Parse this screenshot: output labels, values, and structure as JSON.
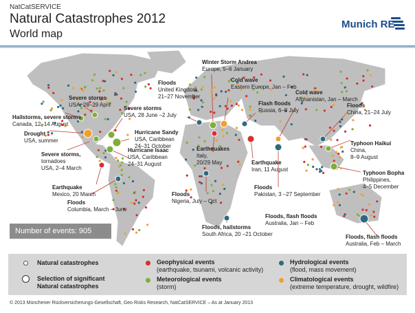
{
  "header": {
    "brand_small": "NatCatSERVICE",
    "title": "Natural Catastrophes 2012",
    "subtitle": "World map",
    "logo_text": "Munich RE"
  },
  "colors": {
    "land": "#bfbfbf",
    "ocean": "#ffffff",
    "geophysical": "#d62f2f",
    "meteorological": "#7fae3a",
    "hydrological": "#2d6a7f",
    "climatological": "#f0a030",
    "logo_blue": "#1a4d8c",
    "leader": "#c0392b"
  },
  "events_count": "Number of events: 905",
  "annotations": [
    {
      "key": "severe_storms_usa_apr",
      "title": "Severe storms",
      "lines": [
        "USA, 28–29 April"
      ]
    },
    {
      "key": "hailstorms_canada",
      "title": "Hailstorms, severe storms",
      "lines": [
        "Canada, 12–14 August"
      ]
    },
    {
      "key": "drought_usa",
      "title": "Drought",
      "lines": [
        "USA, summer"
      ]
    },
    {
      "key": "severe_storms_tornadoes",
      "title": "Severe storms,",
      "lines": [
        "tornadoes",
        "USA, 2–4 March"
      ]
    },
    {
      "key": "earthquake_mexico",
      "title": "Earthquake",
      "lines": [
        "Mexico, 20 March"
      ]
    },
    {
      "key": "floods_columbia",
      "title": "Floods",
      "lines": [
        "Columbia, March – June"
      ]
    },
    {
      "key": "severe_storms_usa_jul",
      "title": "Severe storms",
      "lines": [
        "USA, 28 June –2 July"
      ]
    },
    {
      "key": "hurricane_sandy",
      "title": "Hurricane Sandy",
      "lines": [
        "USA, Caribbean",
        "24–31 October"
      ]
    },
    {
      "key": "hurricane_isaac",
      "title": "Hurricane Isaac",
      "lines": [
        "USA, Caribbean",
        "24–31 August"
      ]
    },
    {
      "key": "floods_uk",
      "title": "Floods",
      "lines": [
        "United Kingdom,",
        "21–27 November"
      ]
    },
    {
      "key": "winter_storm_andrea",
      "title": "Winter Storm Andrea",
      "lines": [
        "Europe, 5–6 January"
      ]
    },
    {
      "key": "cold_wave_europe",
      "title": "Cold wave",
      "lines": [
        "Eastern Europe, Jan – Feb"
      ]
    },
    {
      "key": "flash_floods_russia",
      "title": "Flash floods",
      "lines": [
        "Russia, 6–8 July"
      ]
    },
    {
      "key": "cold_wave_afghanistan",
      "title": "Cold wave",
      "lines": [
        "Afghanistan, Jan – March"
      ]
    },
    {
      "key": "floods_china",
      "title": "Floods",
      "lines": [
        "China, 21–24 July"
      ]
    },
    {
      "key": "earthquakes_italy",
      "title": "Earthquakes",
      "lines": [
        "Italy,",
        "20/29 May"
      ]
    },
    {
      "key": "earthquake_iran",
      "title": "Earthquake",
      "lines": [
        "Iran, 11 August"
      ]
    },
    {
      "key": "typhoon_haikui",
      "title": "Typhoon Haikui",
      "lines": [
        "China,",
        "8–9 August"
      ]
    },
    {
      "key": "typhoon_bopha",
      "title": "Typhoon Bopha",
      "lines": [
        "Philippines,",
        "4–5 December"
      ]
    },
    {
      "key": "floods_nigeria",
      "title": "Floods",
      "lines": [
        "Nigeria, July – Oct"
      ]
    },
    {
      "key": "floods_pakistan",
      "title": "Floods",
      "lines": [
        "Pakistan, 3 –27 September"
      ]
    },
    {
      "key": "floods_sa",
      "title": "Floods, hailstorms",
      "lines": [
        "South Africa, 20 –21 October"
      ]
    },
    {
      "key": "flash_floods_aus1",
      "title": "Floods, flash floods",
      "lines": [
        "Australia, Jan – Feb"
      ]
    },
    {
      "key": "flash_floods_aus2",
      "title": "Floods, flash floods",
      "lines": [
        "Australia, Feb – March"
      ]
    }
  ],
  "legend": {
    "natural": "Natural catastrophes",
    "significant_1": "Selection of significant",
    "significant_2": "Natural catastrophes",
    "geophysical_title": "Geophysical events",
    "geophysical_desc": "(earthquake, tsunami, volcanic activity)",
    "meteorological_title": "Meteorological events",
    "meteorological_desc": "(storm)",
    "hydrological_title": "Hydrological events",
    "hydrological_desc": "(flood, mass movement)",
    "climatological_title": "Climatological events",
    "climatological_desc": "(extreme temperature, drought, wildfire)"
  },
  "footer": "© 2013 Münchener Rückversicherungs-Gesellschaft, Geo Risks Research, NatCatSERVICE – As at January 2013",
  "chart_data": {
    "type": "scatter",
    "title": "Natural Catastrophes 2012",
    "subtitle": "World map",
    "categories": [
      "Geophysical events",
      "Meteorological events",
      "Hydrological events",
      "Climatological events"
    ],
    "total_events": 905,
    "significant_events": [
      {
        "name": "Severe storms",
        "place": "USA, 28–29 April",
        "category": "Meteorological events"
      },
      {
        "name": "Hailstorms, severe storms",
        "place": "Canada, 12–14 August",
        "category": "Meteorological events"
      },
      {
        "name": "Drought",
        "place": "USA, summer",
        "category": "Climatological events"
      },
      {
        "name": "Severe storms, tornadoes",
        "place": "USA, 2–4 March",
        "category": "Meteorological events"
      },
      {
        "name": "Earthquake",
        "place": "Mexico, 20 March",
        "category": "Geophysical events"
      },
      {
        "name": "Floods",
        "place": "Columbia, March – June",
        "category": "Hydrological events"
      },
      {
        "name": "Severe storms",
        "place": "USA, 28 June –2 July",
        "category": "Meteorological events"
      },
      {
        "name": "Hurricane Sandy",
        "place": "USA, Caribbean, 24–31 October",
        "category": "Meteorological events"
      },
      {
        "name": "Hurricane Isaac",
        "place": "USA, Caribbean, 24–31 August",
        "category": "Meteorological events"
      },
      {
        "name": "Floods",
        "place": "United Kingdom, 21–27 November",
        "category": "Hydrological events"
      },
      {
        "name": "Winter Storm Andrea",
        "place": "Europe, 5–6 January",
        "category": "Meteorological events"
      },
      {
        "name": "Cold wave",
        "place": "Eastern Europe, Jan – Feb",
        "category": "Climatological events"
      },
      {
        "name": "Flash floods",
        "place": "Russia, 6–8 July",
        "category": "Hydrological events"
      },
      {
        "name": "Cold wave",
        "place": "Afghanistan, Jan – March",
        "category": "Climatological events"
      },
      {
        "name": "Floods",
        "place": "China, 21–24 July",
        "category": "Hydrological events"
      },
      {
        "name": "Earthquakes",
        "place": "Italy, 20/29 May",
        "category": "Geophysical events"
      },
      {
        "name": "Earthquake",
        "place": "Iran, 11 August",
        "category": "Geophysical events"
      },
      {
        "name": "Typhoon Haikui",
        "place": "China, 8–9 August",
        "category": "Meteorological events"
      },
      {
        "name": "Typhoon Bopha",
        "place": "Philippines, 4–5 December",
        "category": "Meteorological events"
      },
      {
        "name": "Floods",
        "place": "Nigeria, July – Oct",
        "category": "Hydrological events"
      },
      {
        "name": "Floods",
        "place": "Pakistan, 3 –27 September",
        "category": "Hydrological events"
      },
      {
        "name": "Floods, hailstorms",
        "place": "South Africa, 20 –21 October",
        "category": "Hydrological events"
      },
      {
        "name": "Floods, flash floods",
        "place": "Australia, Jan – Feb",
        "category": "Hydrological events"
      },
      {
        "name": "Floods, flash floods",
        "place": "Australia, Feb – March",
        "category": "Hydrological events"
      }
    ]
  }
}
